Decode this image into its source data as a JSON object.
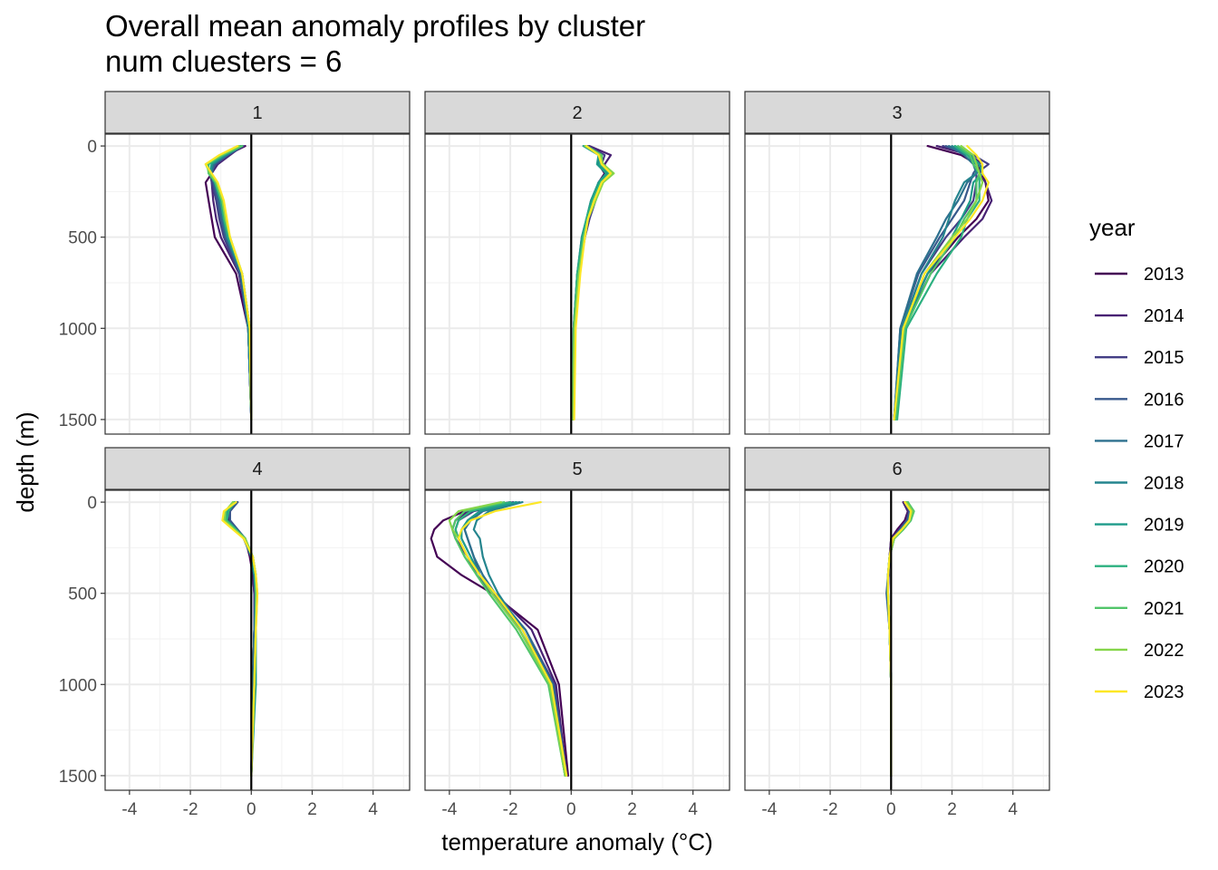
{
  "chart_data": {
    "type": "line",
    "title": "Overall mean anomaly profiles by cluster",
    "subtitle": "num cluesters = 6",
    "xlabel": "temperature anomaly (°C)",
    "ylabel": "depth (m)",
    "xlim": [
      -4.8,
      5.2
    ],
    "ylim": [
      1580,
      -65
    ],
    "y_reversed": true,
    "x_ticks": [
      -4,
      -2,
      0,
      2,
      4
    ],
    "x_tick_labels": [
      "-4",
      "-2",
      "0",
      "2",
      "4"
    ],
    "y_ticks": [
      0,
      500,
      1000,
      1500
    ],
    "y_tick_labels": [
      "0",
      "500",
      "1000",
      "1500"
    ],
    "grid": true,
    "reference_line": {
      "x": 0,
      "color": "#000000"
    },
    "legend": {
      "title": "year",
      "position": "right"
    },
    "depths": [
      0,
      50,
      100,
      150,
      200,
      300,
      400,
      500,
      700,
      1000,
      1500
    ],
    "years": [
      "2013",
      "2014",
      "2015",
      "2016",
      "2017",
      "2018",
      "2019",
      "2020",
      "2021",
      "2022",
      "2023"
    ],
    "colors": [
      "#440154",
      "#482173",
      "#433E85",
      "#38598C",
      "#2D708E",
      "#25858E",
      "#1E9B8A",
      "#2BB07F",
      "#51C56A",
      "#85D54A",
      "#FDE725"
    ],
    "panels": [
      {
        "label": "1",
        "series": [
          [
            -0.2,
            -0.8,
            -1.2,
            -1.3,
            -1.5,
            -1.4,
            -1.3,
            -1.2,
            -0.5,
            -0.1,
            0.0
          ],
          [
            -0.3,
            -0.7,
            -1.1,
            -1.3,
            -1.3,
            -1.25,
            -1.15,
            -1.0,
            -0.4,
            -0.1,
            0.0
          ],
          [
            -0.25,
            -0.75,
            -1.15,
            -1.35,
            -1.3,
            -1.15,
            -1.05,
            -0.9,
            -0.4,
            -0.1,
            0.0
          ],
          [
            -0.3,
            -0.8,
            -1.2,
            -1.3,
            -1.25,
            -1.1,
            -1.0,
            -0.85,
            -0.35,
            -0.1,
            0.0
          ],
          [
            -0.35,
            -0.85,
            -1.25,
            -1.3,
            -1.2,
            -1.05,
            -0.95,
            -0.8,
            -0.35,
            -0.1,
            0.0
          ],
          [
            -0.3,
            -0.8,
            -1.3,
            -1.35,
            -1.2,
            -1.0,
            -0.9,
            -0.8,
            -0.3,
            -0.1,
            0.0
          ],
          [
            -0.4,
            -0.9,
            -1.3,
            -1.35,
            -1.2,
            -1.0,
            -0.9,
            -0.75,
            -0.3,
            -0.05,
            0.0
          ],
          [
            -0.35,
            -0.9,
            -1.4,
            -1.4,
            -1.2,
            -1.0,
            -0.9,
            -0.75,
            -0.3,
            -0.05,
            0.0
          ],
          [
            -0.3,
            -0.95,
            -1.45,
            -1.4,
            -1.15,
            -0.95,
            -0.85,
            -0.7,
            -0.3,
            -0.05,
            0.0
          ],
          [
            -0.4,
            -1.0,
            -1.5,
            -1.35,
            -1.15,
            -0.95,
            -0.85,
            -0.7,
            -0.3,
            -0.05,
            0.0
          ],
          [
            -0.45,
            -1.05,
            -1.5,
            -1.3,
            -1.1,
            -0.9,
            -0.8,
            -0.7,
            -0.3,
            -0.05,
            0.0
          ]
        ]
      },
      {
        "label": "2",
        "series": [
          [
            0.5,
            1.0,
            0.9,
            1.1,
            0.9,
            0.7,
            0.55,
            0.45,
            0.25,
            0.1,
            0.05
          ],
          [
            0.6,
            1.3,
            1.1,
            1.2,
            0.9,
            0.75,
            0.6,
            0.45,
            0.25,
            0.1,
            0.05
          ],
          [
            0.55,
            1.1,
            1.0,
            1.3,
            1.0,
            0.8,
            0.6,
            0.45,
            0.25,
            0.1,
            0.05
          ],
          [
            0.5,
            1.0,
            0.95,
            1.25,
            1.0,
            0.75,
            0.55,
            0.4,
            0.2,
            0.1,
            0.05
          ],
          [
            0.5,
            1.0,
            0.9,
            1.2,
            0.95,
            0.7,
            0.5,
            0.4,
            0.2,
            0.08,
            0.05
          ],
          [
            0.45,
            0.95,
            0.9,
            1.15,
            0.9,
            0.65,
            0.5,
            0.35,
            0.2,
            0.08,
            0.05
          ],
          [
            0.4,
            0.9,
            0.85,
            1.15,
            0.9,
            0.65,
            0.5,
            0.35,
            0.2,
            0.08,
            0.05
          ],
          [
            0.45,
            0.95,
            0.95,
            1.25,
            0.95,
            0.7,
            0.5,
            0.4,
            0.2,
            0.1,
            0.05
          ],
          [
            0.5,
            1.0,
            1.0,
            1.35,
            1.0,
            0.75,
            0.55,
            0.4,
            0.25,
            0.1,
            0.05
          ],
          [
            0.45,
            0.95,
            1.05,
            1.4,
            1.05,
            0.8,
            0.55,
            0.45,
            0.25,
            0.1,
            0.05
          ],
          [
            0.5,
            0.9,
            1.0,
            1.3,
            1.0,
            0.75,
            0.55,
            0.45,
            0.3,
            0.15,
            0.1
          ]
        ]
      },
      {
        "label": "3",
        "series": [
          [
            1.2,
            2.3,
            2.8,
            3.0,
            3.1,
            3.2,
            2.8,
            2.2,
            1.2,
            0.35,
            0.1
          ],
          [
            1.5,
            2.6,
            3.0,
            2.9,
            3.1,
            3.3,
            3.0,
            2.4,
            1.3,
            0.4,
            0.1
          ],
          [
            1.7,
            2.7,
            3.2,
            2.8,
            2.8,
            2.7,
            2.3,
            1.8,
            1.0,
            0.35,
            0.1
          ],
          [
            1.8,
            2.6,
            2.9,
            2.7,
            2.6,
            2.4,
            2.0,
            1.6,
            0.9,
            0.3,
            0.1
          ],
          [
            1.9,
            2.4,
            2.7,
            2.8,
            2.5,
            2.2,
            1.8,
            1.5,
            0.85,
            0.3,
            0.1
          ],
          [
            2.0,
            2.5,
            2.8,
            2.8,
            2.4,
            2.1,
            1.9,
            1.7,
            1.0,
            0.35,
            0.1
          ],
          [
            2.1,
            2.6,
            2.9,
            3.0,
            2.7,
            2.6,
            2.3,
            2.0,
            1.2,
            0.4,
            0.15
          ],
          [
            2.1,
            2.5,
            2.8,
            2.9,
            2.9,
            2.9,
            2.5,
            2.3,
            1.5,
            0.5,
            0.2
          ],
          [
            2.2,
            2.6,
            2.7,
            2.9,
            2.8,
            2.8,
            2.4,
            2.1,
            1.3,
            0.45,
            0.15
          ],
          [
            2.3,
            2.7,
            2.8,
            2.9,
            3.0,
            2.8,
            2.5,
            2.0,
            1.1,
            0.4,
            0.1
          ],
          [
            2.5,
            2.8,
            3.0,
            3.0,
            3.2,
            3.0,
            2.6,
            2.1,
            1.1,
            0.4,
            0.1
          ]
        ]
      },
      {
        "label": "4",
        "series": [
          [
            -0.5,
            -0.7,
            -0.75,
            -0.5,
            -0.2,
            -0.05,
            0.05,
            0.1,
            0.1,
            0.05,
            0.0
          ],
          [
            -0.45,
            -0.7,
            -0.7,
            -0.5,
            -0.2,
            0.0,
            0.05,
            0.1,
            0.1,
            0.05,
            0.0
          ],
          [
            -0.5,
            -0.75,
            -0.7,
            -0.45,
            -0.2,
            0.0,
            0.1,
            0.1,
            0.1,
            0.05,
            0.0
          ],
          [
            -0.45,
            -0.7,
            -0.7,
            -0.45,
            -0.2,
            0.0,
            0.1,
            0.15,
            0.1,
            0.05,
            0.0
          ],
          [
            -0.55,
            -0.75,
            -0.8,
            -0.5,
            -0.25,
            0.0,
            0.1,
            0.15,
            0.1,
            0.05,
            0.0
          ],
          [
            -0.5,
            -0.8,
            -0.8,
            -0.5,
            -0.2,
            0.0,
            0.1,
            0.15,
            0.15,
            0.1,
            0.0
          ],
          [
            -0.6,
            -0.8,
            -0.8,
            -0.5,
            -0.2,
            0.0,
            0.1,
            0.15,
            0.15,
            0.15,
            0.0
          ],
          [
            -0.55,
            -0.75,
            -0.8,
            -0.5,
            -0.2,
            0.05,
            0.15,
            0.15,
            0.15,
            0.1,
            0.0
          ],
          [
            -0.6,
            -0.85,
            -0.85,
            -0.55,
            -0.2,
            0.05,
            0.15,
            0.15,
            0.15,
            0.1,
            0.0
          ],
          [
            -0.6,
            -0.85,
            -0.9,
            -0.55,
            -0.2,
            0.05,
            0.15,
            0.2,
            0.15,
            0.1,
            0.0
          ],
          [
            -0.5,
            -0.9,
            -0.95,
            -0.6,
            -0.25,
            0.05,
            0.15,
            0.2,
            0.15,
            0.1,
            0.0
          ]
        ]
      },
      {
        "label": "5",
        "series": [
          [
            -2.0,
            -3.5,
            -4.2,
            -4.5,
            -4.6,
            -4.4,
            -3.6,
            -2.6,
            -1.1,
            -0.4,
            -0.1
          ],
          [
            -2.0,
            -3.4,
            -3.8,
            -3.9,
            -3.8,
            -3.4,
            -3.0,
            -2.5,
            -1.3,
            -0.5,
            -0.15
          ],
          [
            -1.9,
            -3.2,
            -3.7,
            -3.8,
            -3.7,
            -3.4,
            -3.1,
            -2.6,
            -1.5,
            -0.55,
            -0.15
          ],
          [
            -1.8,
            -3.0,
            -3.4,
            -3.5,
            -3.4,
            -3.2,
            -3.0,
            -2.6,
            -1.6,
            -0.6,
            -0.15
          ],
          [
            -1.7,
            -2.9,
            -3.3,
            -3.5,
            -3.4,
            -3.2,
            -2.9,
            -2.5,
            -1.5,
            -0.6,
            -0.15
          ],
          [
            -1.6,
            -2.7,
            -3.1,
            -3.2,
            -3.0,
            -2.9,
            -2.7,
            -2.4,
            -1.6,
            -0.7,
            -0.2
          ],
          [
            -1.8,
            -3.0,
            -3.4,
            -3.6,
            -3.6,
            -3.3,
            -3.0,
            -2.6,
            -1.7,
            -0.7,
            -0.2
          ],
          [
            -2.0,
            -3.3,
            -3.7,
            -3.8,
            -3.7,
            -3.4,
            -3.0,
            -2.6,
            -1.7,
            -0.7,
            -0.2
          ],
          [
            -2.2,
            -3.5,
            -3.8,
            -3.9,
            -3.8,
            -3.5,
            -3.1,
            -2.7,
            -1.8,
            -0.75,
            -0.2
          ],
          [
            -2.3,
            -3.7,
            -4.0,
            -3.9,
            -3.7,
            -3.4,
            -3.0,
            -2.6,
            -1.7,
            -0.7,
            -0.2
          ],
          [
            -1.0,
            -2.5,
            -3.3,
            -3.6,
            -3.7,
            -3.4,
            -3.0,
            -2.5,
            -1.6,
            -0.65,
            -0.15
          ]
        ]
      },
      {
        "label": "6",
        "series": [
          [
            0.4,
            0.55,
            0.45,
            0.2,
            0.0,
            -0.05,
            -0.08,
            -0.1,
            -0.05,
            0.0,
            0.0
          ],
          [
            0.4,
            0.55,
            0.5,
            0.25,
            0.0,
            -0.05,
            -0.08,
            -0.12,
            -0.05,
            0.0,
            0.0
          ],
          [
            0.45,
            0.6,
            0.5,
            0.3,
            0.05,
            -0.05,
            -0.08,
            -0.12,
            -0.05,
            0.0,
            0.0
          ],
          [
            0.45,
            0.6,
            0.55,
            0.3,
            0.05,
            -0.05,
            -0.1,
            -0.15,
            -0.05,
            0.0,
            0.0
          ],
          [
            0.5,
            0.65,
            0.55,
            0.3,
            0.05,
            -0.05,
            -0.1,
            -0.12,
            -0.05,
            0.0,
            0.0
          ],
          [
            0.5,
            0.65,
            0.6,
            0.35,
            0.1,
            -0.05,
            -0.1,
            -0.12,
            -0.05,
            0.0,
            0.0
          ],
          [
            0.5,
            0.7,
            0.6,
            0.35,
            0.1,
            -0.05,
            -0.1,
            -0.1,
            -0.05,
            0.0,
            0.0
          ],
          [
            0.55,
            0.7,
            0.65,
            0.4,
            0.1,
            -0.05,
            -0.1,
            -0.1,
            -0.05,
            0.0,
            0.0
          ],
          [
            0.55,
            0.75,
            0.65,
            0.4,
            0.1,
            -0.05,
            -0.1,
            -0.1,
            -0.05,
            0.0,
            0.0
          ],
          [
            0.5,
            0.7,
            0.6,
            0.35,
            0.1,
            -0.05,
            -0.1,
            -0.1,
            -0.05,
            0.0,
            0.0
          ],
          [
            0.45,
            0.65,
            0.6,
            0.35,
            0.05,
            -0.05,
            -0.1,
            -0.1,
            -0.05,
            0.0,
            0.0
          ]
        ]
      }
    ]
  }
}
